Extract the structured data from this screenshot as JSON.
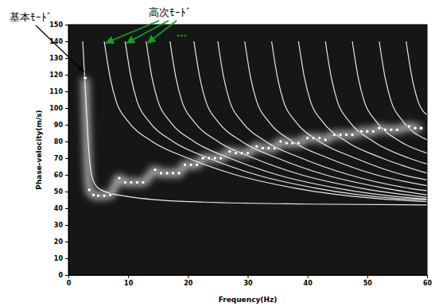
{
  "chart_data": {
    "type": "line",
    "x_label": "Frequency(Hz)",
    "y_label": "Phase-velocity(m/s)",
    "xlim": [
      0,
      60
    ],
    "ylim": [
      0,
      150
    ],
    "xticks": [
      0,
      10,
      20,
      30,
      40,
      50,
      60
    ],
    "yticks": [
      0,
      10,
      20,
      30,
      40,
      50,
      60,
      70,
      80,
      90,
      100,
      110,
      120,
      130,
      140,
      150
    ],
    "grid": false,
    "annotations": [
      {
        "text": "基本ﾓｰﾄﾞ"
      },
      {
        "text": "高次ﾓｰﾄﾞ"
      },
      {
        "text": "…"
      }
    ],
    "series": [
      {
        "type": "line",
        "color": "#ffffff",
        "line_style": "solid",
        "x": [
          2.4,
          2.7,
          3,
          3.4,
          4,
          5,
          7,
          10,
          20,
          40,
          60
        ],
        "values": [
          140,
          120,
          100,
          75,
          58,
          52,
          49,
          47,
          44,
          42.5,
          42
        ]
      },
      {
        "type": "line",
        "color": "#ffffff",
        "line_style": "solid",
        "x": [
          6,
          7,
          8,
          10,
          14,
          20,
          28,
          38,
          51,
          60
        ],
        "values": [
          140,
          118,
          104,
          92,
          80,
          70,
          60,
          52,
          46,
          44
        ]
      },
      {
        "type": "line",
        "color": "#ffffff",
        "line_style": "solid",
        "x": [
          9.5,
          10.5,
          11.5,
          13.5,
          17.5,
          23.5,
          31.5,
          41.5,
          54.5,
          60
        ],
        "values": [
          140,
          118,
          104,
          92,
          80,
          70,
          60,
          52,
          46,
          45
        ]
      },
      {
        "type": "line",
        "color": "#ffffff",
        "line_style": "solid",
        "x": [
          13,
          14,
          15,
          17,
          21,
          27,
          35,
          45,
          58,
          60
        ],
        "values": [
          140,
          118,
          104,
          92,
          80,
          70,
          60,
          52,
          46,
          45.5
        ]
      },
      {
        "type": "line",
        "color": "#ffffff",
        "line_style": "solid",
        "x": [
          17,
          18,
          19,
          21,
          25,
          31,
          39,
          49,
          60
        ],
        "values": [
          140,
          118,
          104,
          92,
          80,
          70,
          60,
          52,
          46.5
        ]
      },
      {
        "type": "line",
        "color": "#ffffff",
        "line_style": "solid",
        "x": [
          21,
          22,
          23,
          25,
          29,
          35,
          43,
          53,
          60
        ],
        "values": [
          140,
          118,
          104,
          92,
          80,
          70,
          60,
          52,
          48
        ]
      },
      {
        "type": "line",
        "color": "#ffffff",
        "line_style": "solid",
        "x": [
          25,
          26,
          27,
          29,
          33,
          39,
          47,
          57,
          60
        ],
        "values": [
          140,
          118,
          104,
          92,
          80,
          70,
          60,
          52,
          50.5
        ]
      },
      {
        "type": "line",
        "color": "#ffffff",
        "line_style": "solid",
        "x": [
          29.5,
          30.5,
          31.5,
          33.5,
          37.5,
          43.5,
          51.5,
          60
        ],
        "values": [
          140,
          118,
          104,
          92,
          80,
          70,
          60,
          53.5
        ]
      },
      {
        "type": "line",
        "color": "#ffffff",
        "line_style": "solid",
        "x": [
          34,
          35,
          36,
          38,
          42,
          48,
          56,
          60
        ],
        "values": [
          140,
          118,
          104,
          92,
          80,
          70,
          60,
          57
        ]
      },
      {
        "type": "line",
        "color": "#ffffff",
        "line_style": "solid",
        "x": [
          38.5,
          39.5,
          40.5,
          42.5,
          46.5,
          52.5,
          60
        ],
        "values": [
          140,
          118,
          104,
          92,
          80,
          70,
          61
        ]
      },
      {
        "type": "line",
        "color": "#ffffff",
        "line_style": "solid",
        "x": [
          43,
          44,
          45,
          47,
          51,
          57,
          60
        ],
        "values": [
          140,
          118,
          104,
          92,
          80,
          70,
          66.5
        ]
      },
      {
        "type": "line",
        "color": "#ffffff",
        "line_style": "solid",
        "x": [
          47.5,
          48.5,
          49.5,
          51.5,
          55.5,
          60
        ],
        "values": [
          140,
          118,
          104,
          92,
          80,
          73
        ]
      },
      {
        "type": "line",
        "color": "#ffffff",
        "line_style": "solid",
        "x": [
          52,
          53,
          54,
          56,
          60
        ],
        "values": [
          140,
          118,
          104,
          92,
          81
        ]
      },
      {
        "type": "line",
        "color": "#ffffff",
        "line_style": "solid",
        "x": [
          56.5,
          57.5,
          58.5,
          60
        ],
        "values": [
          140,
          118,
          104,
          96
        ]
      },
      {
        "type": "scatter",
        "color": "#ffffff",
        "marker": "circle",
        "x": [
          2.8,
          3.5,
          4.2,
          5,
          6,
          7,
          8.5,
          9.5,
          10.5,
          11.5,
          12.5,
          14.5,
          15.5,
          16.5,
          17.5,
          18.5,
          19.5,
          20.5,
          21.5,
          22.5,
          23.5,
          24.5,
          25.5,
          27,
          28,
          29,
          30,
          31.5,
          32.5,
          33.5,
          34.5,
          35.5,
          36.5,
          37.5,
          38.5,
          40,
          41,
          42,
          43,
          44.5,
          45.5,
          46.5,
          47.5,
          49,
          50,
          51,
          52,
          53,
          54,
          55,
          57,
          58,
          59
        ],
        "values": [
          118,
          51,
          48,
          47.5,
          47.5,
          48,
          58,
          55.5,
          55.5,
          55.5,
          55.5,
          63,
          61,
          61,
          61,
          61,
          66,
          66,
          66,
          70,
          70,
          70,
          70,
          74,
          73,
          73,
          73,
          77,
          76,
          76,
          76,
          80,
          79,
          79,
          79,
          82,
          82,
          82,
          81,
          84,
          84,
          84,
          84,
          86,
          86,
          86,
          88,
          87,
          87,
          87,
          89,
          88,
          88
        ]
      }
    ]
  }
}
